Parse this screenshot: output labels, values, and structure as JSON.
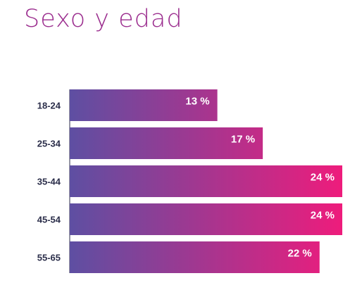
{
  "title": "Sexo y edad",
  "colors": {
    "title": "#9b2d8e",
    "category_label": "#2b2e4a",
    "axis": "#2b2e4a",
    "bar_gradient_start": "#5e4fa2",
    "bar_gradient_end": "#ee1c7c",
    "value_label": "#ffffff"
  },
  "chart_data": {
    "type": "bar",
    "orientation": "horizontal",
    "categories": [
      "18-24",
      "25-34",
      "35-44",
      "45-54",
      "55-65"
    ],
    "values": [
      13,
      17,
      24,
      24,
      22
    ],
    "value_labels": [
      "13 %",
      "17 %",
      "24 %",
      "24 %",
      "22 %"
    ],
    "unit": "%",
    "title": "Sexo y edad",
    "xlabel": "",
    "ylabel": "",
    "xlim": [
      0,
      24
    ],
    "grid": false,
    "legend": "none"
  }
}
